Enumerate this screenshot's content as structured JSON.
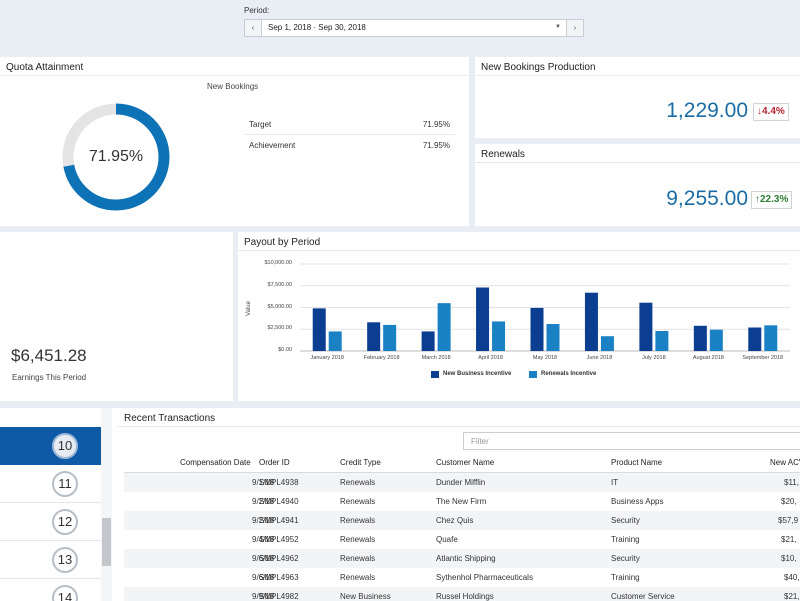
{
  "period": {
    "label": "Period:",
    "value": "Sep 1, 2018 · Sep 30, 2018",
    "prev_icon": "chevron-left-icon",
    "next_icon": "chevron-right-icon",
    "caret_icon": "caret-down-icon"
  },
  "quota": {
    "title": "Quota Attainment",
    "subtitle": "New Bookings",
    "percent_label": "71.95%",
    "fraction": 0.7195,
    "rows": [
      {
        "label": "Target",
        "value": "71.95%"
      },
      {
        "label": "Achievement",
        "value": "71.95%"
      }
    ],
    "colors": {
      "fill": "#0e73b6",
      "track": "#e4e4e4"
    }
  },
  "new_bookings": {
    "title": "New Bookings Production",
    "value": "1,229.00",
    "change": "4.4%",
    "direction": "down",
    "change_icon": "arrow-down-icon"
  },
  "renewals": {
    "title": "Renewals",
    "value": "9,255.00",
    "change": "22.3%",
    "direction": "up",
    "change_icon": "arrow-up-icon"
  },
  "earnings": {
    "value": "$6,451.28",
    "caption": "Earnings This Period"
  },
  "chart_data": {
    "type": "bar",
    "title": "Payout by Period",
    "ylabel": "Value",
    "xlabel": "",
    "ylim": [
      0,
      10000
    ],
    "y_ticks": [
      "$10,000.00",
      "$7,500.00",
      "$5,000.00",
      "$2,500.00",
      "$0.00"
    ],
    "y_tick_values": [
      10000,
      7500,
      5000,
      2500,
      0
    ],
    "categories": [
      "January 2018",
      "February 2018",
      "March 2018",
      "April 2018",
      "May 2018",
      "June 2018",
      "July 2018",
      "August 2018",
      "September 2018"
    ],
    "series": [
      {
        "name": "New Business Incentive",
        "color": "#0b3d91",
        "values": [
          4900,
          3300,
          2250,
          7300,
          4950,
          6700,
          5550,
          2900,
          2700
        ]
      },
      {
        "name": "Renewals Incentive",
        "color": "#1a82c4",
        "values": [
          2250,
          3000,
          5500,
          3400,
          3100,
          1700,
          2300,
          2450,
          2950
        ]
      }
    ],
    "grid": true,
    "legend_position": "bottom"
  },
  "list": {
    "items": [
      "10",
      "11",
      "12",
      "13",
      "14"
    ],
    "active_index": 0
  },
  "transactions": {
    "title": "Recent Transactions",
    "filter_placeholder": "Filter",
    "columns": [
      "Compensation Date",
      "Order ID",
      "Credit Type",
      "Customer Name",
      "Product Name",
      "New ACV"
    ],
    "rows": [
      [
        "9/1/18",
        "SMPL4938",
        "Renewals",
        "Dunder Mifflin",
        "IT",
        "$11,"
      ],
      [
        "9/2/18",
        "SMPL4940",
        "Renewals",
        "The New Firm",
        "Business Apps",
        "$20,"
      ],
      [
        "9/2/18",
        "SMPL4941",
        "Renewals",
        "Chez Quis",
        "Security",
        "$57,9"
      ],
      [
        "9/4/18",
        "SMPL4952",
        "Renewals",
        "Quafe",
        "Training",
        "$21,"
      ],
      [
        "9/6/18",
        "SMPL4962",
        "Renewals",
        "Atlantic Shipping",
        "Security",
        "$10,"
      ],
      [
        "9/6/18",
        "SMPL4963",
        "Renewals",
        "Sythenhol Pharmaceuticals",
        "Training",
        "$40,"
      ],
      [
        "9/9/18",
        "SMPL4982",
        "New Business",
        "Russel Holdings",
        "Customer Service",
        "$21,"
      ]
    ]
  }
}
